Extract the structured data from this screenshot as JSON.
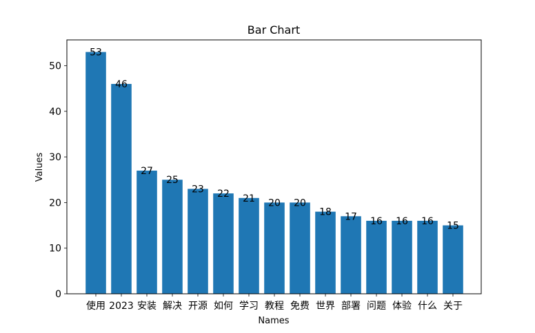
{
  "chart_data": {
    "type": "bar",
    "title": "Bar Chart",
    "xlabel": "Names",
    "ylabel": "Values",
    "categories": [
      "使用",
      "2023",
      "安装",
      "解决",
      "开源",
      "如何",
      "学习",
      "教程",
      "免费",
      "世界",
      "部署",
      "问题",
      "体验",
      "什么",
      "关于"
    ],
    "values": [
      53,
      46,
      27,
      25,
      23,
      22,
      21,
      20,
      20,
      18,
      17,
      16,
      16,
      16,
      15
    ],
    "yticks": [
      0,
      10,
      20,
      30,
      40,
      50
    ],
    "ylim": [
      0,
      55.65
    ],
    "grid": false,
    "legend": "none",
    "bar_color": "#1f77b4",
    "data_labels": true
  }
}
